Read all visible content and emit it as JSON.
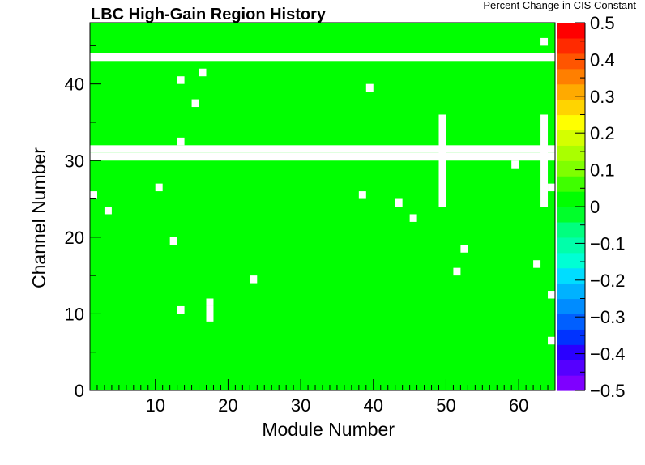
{
  "chart_data": {
    "type": "heatmap",
    "title": "LBC High-Gain Region History",
    "xlabel": "Module Number",
    "ylabel": "Channel Number",
    "colorbar_title": "Percent Change in CIS Constant",
    "xlim": [
      1,
      65
    ],
    "ylim": [
      0,
      48
    ],
    "x_ticks": [
      10,
      20,
      30,
      40,
      50,
      60
    ],
    "y_ticks": [
      0,
      10,
      20,
      30,
      40
    ],
    "z_range": [
      -0.5,
      0.5
    ],
    "z_ticks": [
      "0.5",
      "0.4",
      "0.3",
      "0.2",
      "0.1",
      "0",
      "−0.1",
      "−0.2",
      "−0.3",
      "−0.4",
      "−0.5"
    ],
    "z_ticks_values": [
      0.5,
      0.4,
      0.3,
      0.2,
      0.1,
      0,
      -0.1,
      -0.2,
      -0.3,
      -0.4,
      -0.5
    ],
    "fill_value": 0.0,
    "fill_color": "#00ff00",
    "empty_color": "#ffffff",
    "palette": [
      "#7f00ff",
      "#5500ff",
      "#2a00ff",
      "#0033ff",
      "#005fff",
      "#008cff",
      "#00b2ff",
      "#00ddff",
      "#00ffd4",
      "#00ffaa",
      "#00ff7f",
      "#00ff2a",
      "#00ff00",
      "#3fff00",
      "#7fff00",
      "#aaff00",
      "#d4ff00",
      "#ffff00",
      "#ffd400",
      "#ffaa00",
      "#ff7f00",
      "#ff5500",
      "#ff2a00",
      "#ff0000"
    ],
    "empty_cells": [
      {
        "module": 1,
        "channel": 25
      },
      {
        "module": 3,
        "channel": 23
      },
      {
        "module": 10,
        "channel": 26
      },
      {
        "module": 12,
        "channel": 19
      },
      {
        "module": 13,
        "channel": 40
      },
      {
        "module": 13,
        "channel": 32
      },
      {
        "module": 13,
        "channel": 10
      },
      {
        "module": 15,
        "channel": 37
      },
      {
        "module": 16,
        "channel": 41
      },
      {
        "module": 17,
        "channel": 9
      },
      {
        "module": 17,
        "channel": 10
      },
      {
        "module": 17,
        "channel": 11
      },
      {
        "module": 23,
        "channel": 14
      },
      {
        "module": 38,
        "channel": 25
      },
      {
        "module": 39,
        "channel": 39
      },
      {
        "module": 43,
        "channel": 24
      },
      {
        "module": 45,
        "channel": 22
      },
      {
        "module": 51,
        "channel": 15
      },
      {
        "module": 52,
        "channel": 18
      },
      {
        "module": 59,
        "channel": 29
      },
      {
        "module": 62,
        "channel": 16
      },
      {
        "module": 63,
        "channel": 45
      },
      {
        "module": 64,
        "channel": 12
      },
      {
        "module": 64,
        "channel": 6
      },
      {
        "module": 64,
        "channel": 26
      }
    ],
    "empty_rows": [
      30,
      31,
      43
    ],
    "empty_columns": [
      {
        "module": 49,
        "channel_from": 24,
        "channel_to": 35
      },
      {
        "module": 63,
        "channel_from": 24,
        "channel_to": 35
      }
    ]
  }
}
